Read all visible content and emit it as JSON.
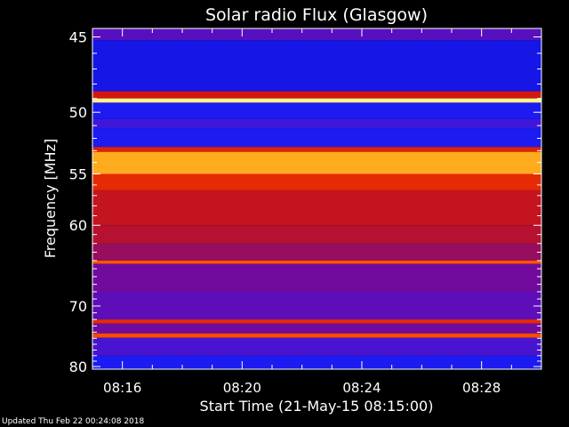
{
  "chart_data": {
    "type": "heatmap",
    "title": "Solar radio Flux (Glasgow)",
    "xlabel": "Start Time (21-May-15 08:15:00)",
    "ylabel": "Frequency [MHz]",
    "x_unit": "minutes",
    "xlim": [
      "08:15:00",
      "08:30:00"
    ],
    "ylim": [
      80.5,
      44.5
    ],
    "y_scale": "reciprocal",
    "x_ticks": [
      "08:16",
      "08:20",
      "08:24",
      "08:28"
    ],
    "y_ticks": [
      45,
      50,
      55,
      60,
      70,
      80
    ],
    "colormap": [
      "#0000b0",
      "#2020ff",
      "#6a0aa8",
      "#b01038",
      "#d81808",
      "#ff5000",
      "#ffb020",
      "#ffffa0"
    ],
    "bands": [
      {
        "freq_range": [
          44.5,
          45.2
        ],
        "level": 0.25
      },
      {
        "freq_range": [
          45.2,
          48.5
        ],
        "level": 0.1
      },
      {
        "freq_range": [
          48.5,
          49.0
        ],
        "level": 0.55
      },
      {
        "freq_range": [
          49.0,
          49.3
        ],
        "level": 0.98
      },
      {
        "freq_range": [
          49.3,
          50.5
        ],
        "level": 0.12
      },
      {
        "freq_range": [
          50.5,
          51.2
        ],
        "level": 0.2
      },
      {
        "freq_range": [
          51.2,
          52.7
        ],
        "level": 0.12
      },
      {
        "freq_range": [
          52.7,
          53.1
        ],
        "level": 0.6
      },
      {
        "freq_range": [
          53.1,
          55.0
        ],
        "level": 0.85
      },
      {
        "freq_range": [
          55.0,
          56.5
        ],
        "level": 0.62
      },
      {
        "freq_range": [
          56.5,
          60.0
        ],
        "level": 0.5
      },
      {
        "freq_range": [
          60.0,
          62.0
        ],
        "level": 0.45
      },
      {
        "freq_range": [
          62.0,
          64.0
        ],
        "level": 0.38
      },
      {
        "freq_range": [
          64.0,
          64.4
        ],
        "level": 0.72
      },
      {
        "freq_range": [
          64.4,
          68.0
        ],
        "level": 0.3
      },
      {
        "freq_range": [
          68.0,
          72.0
        ],
        "level": 0.26
      },
      {
        "freq_range": [
          72.0,
          72.6
        ],
        "level": 0.62
      },
      {
        "freq_range": [
          72.6,
          74.2
        ],
        "level": 0.3
      },
      {
        "freq_range": [
          74.2,
          74.9
        ],
        "level": 0.7
      },
      {
        "freq_range": [
          74.9,
          78.0
        ],
        "level": 0.22
      },
      {
        "freq_range": [
          78.0,
          80.5
        ],
        "level": 0.12
      }
    ]
  },
  "footer": {
    "updated": "Updated Thu Feb 22 00:24:08 2018"
  }
}
